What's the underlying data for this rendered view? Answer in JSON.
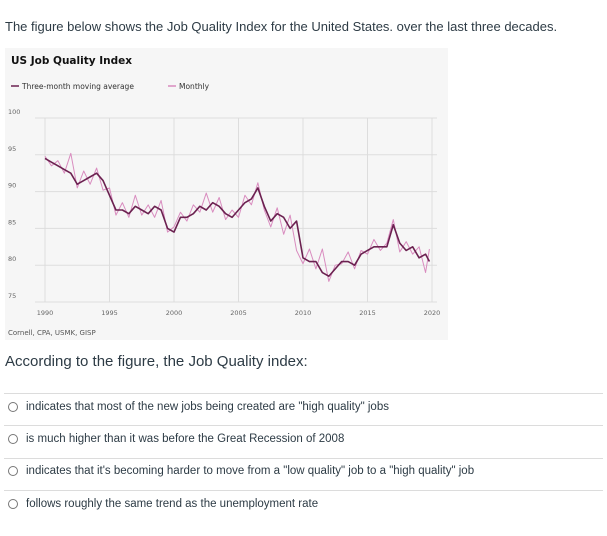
{
  "question": {
    "intro": "The figure below shows the Job Quality Index for the United States. over the last three decades.",
    "prompt": "According to the figure, the Job Quality index:",
    "options": [
      {
        "label": "indicates that most of the new jobs being created are \"high quality\" jobs",
        "selected": false
      },
      {
        "label": "is much higher than it was before the Great Recession of 2008",
        "selected": false
      },
      {
        "label": "indicates that it's becoming harder to move from a \"low quality\" job to a \"high quality\" job",
        "selected": false
      },
      {
        "label": "follows roughly the same trend as the unemployment rate",
        "selected": false
      }
    ]
  },
  "chart_data": {
    "type": "line",
    "title": "US Job Quality Index",
    "source": "Cornell, CPA, USMK, GISP",
    "xlim": [
      1990,
      2020
    ],
    "ylim": [
      75,
      100
    ],
    "xticks": [
      "1990",
      "1995",
      "2000",
      "2005",
      "2010",
      "2015",
      "2020"
    ],
    "yticks": [
      "100",
      "95",
      "90",
      "85",
      "80",
      "75"
    ],
    "grid": true,
    "legend_position": "top-left",
    "x": [
      1990,
      1990.5,
      1991,
      1991.5,
      1992,
      1992.5,
      1993,
      1993.5,
      1994,
      1994.5,
      1995,
      1995.5,
      1996,
      1996.5,
      1997,
      1997.5,
      1998,
      1998.5,
      1999,
      1999.5,
      2000,
      2000.5,
      2001,
      2001.5,
      2002,
      2002.5,
      2003,
      2003.5,
      2004,
      2004.5,
      2005,
      2005.5,
      2006,
      2006.5,
      2007,
      2007.5,
      2008,
      2008.5,
      2009,
      2009.5,
      2010,
      2010.5,
      2011,
      2011.5,
      2012,
      2012.5,
      2013,
      2013.5,
      2014,
      2014.5,
      2015,
      2015.5,
      2016,
      2016.5,
      2017,
      2017.5,
      2018,
      2018.5,
      2019,
      2019.5,
      2019.8
    ],
    "series": [
      {
        "name": "Monthly",
        "color": "#d98cbf",
        "values": [
          94.8,
          93.5,
          94.2,
          92.5,
          95.2,
          90.5,
          92.8,
          91,
          93.2,
          90.2,
          90.5,
          86.8,
          88.5,
          86.5,
          89.5,
          86.8,
          88.2,
          86.5,
          88.8,
          84.5,
          85.2,
          87.2,
          86,
          88.2,
          87.2,
          89.8,
          87.2,
          89.2,
          86.2,
          87.5,
          86.5,
          89.5,
          88.2,
          91.2,
          87.5,
          85.2,
          87.8,
          84.2,
          86.8,
          82,
          80.2,
          82.2,
          79.5,
          82.2,
          77.8,
          80,
          80.2,
          81.8,
          79.5,
          82,
          81.5,
          83.5,
          82,
          83,
          86.2,
          81.8,
          83.2,
          81.5,
          82.5,
          79,
          82.2
        ]
      },
      {
        "name": "Three-month moving average",
        "color": "#6b2150",
        "values": [
          94.5,
          94,
          93.5,
          93,
          92.5,
          91,
          91.5,
          92,
          92.5,
          91.5,
          89.5,
          87.5,
          87.5,
          87,
          88,
          87.5,
          87,
          88,
          87.5,
          85,
          84.5,
          86.5,
          86.5,
          87,
          88,
          87.5,
          88.5,
          88,
          87,
          86.5,
          87.5,
          88.5,
          89,
          90.5,
          88,
          86,
          87,
          86.5,
          85,
          86,
          81,
          80.5,
          80.5,
          79,
          78.5,
          79.5,
          80.5,
          80.5,
          80,
          81.5,
          82,
          82.5,
          82.5,
          82.5,
          85.5,
          83,
          82,
          82.5,
          81,
          81.5,
          80.5
        ]
      }
    ]
  }
}
